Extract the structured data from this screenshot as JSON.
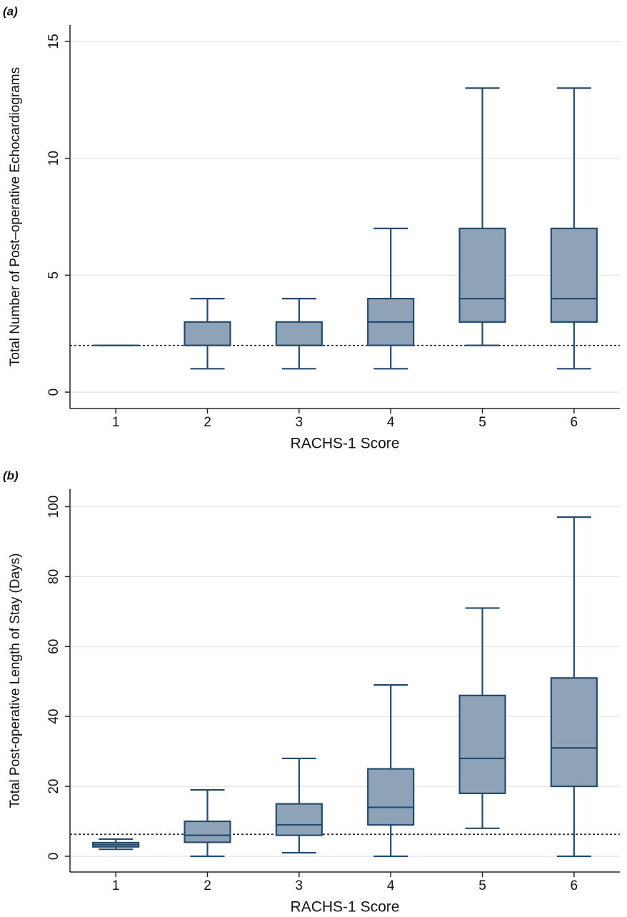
{
  "chart_data": [
    {
      "type": "box",
      "panel_label": "(a)",
      "xlabel": "RACHS-1 Score",
      "ylabel": "Total Number of Post–operative Echocardiograms",
      "categories": [
        "1",
        "2",
        "3",
        "4",
        "5",
        "6"
      ],
      "min": [
        2,
        1,
        1,
        1,
        2,
        1
      ],
      "q1": [
        2,
        2,
        2,
        2,
        3,
        3
      ],
      "median": [
        2,
        2,
        2,
        3,
        4,
        4
      ],
      "q3": [
        2,
        3,
        3,
        4,
        7,
        7
      ],
      "max": [
        2,
        4,
        4,
        7,
        13,
        13
      ],
      "reference_line": 2,
      "color": "#8ea3b8",
      "edge_color": "#244b6e",
      "ylim": [
        -0.7,
        15.7
      ],
      "yticks": [
        0,
        5,
        10,
        15
      ],
      "grid": true
    },
    {
      "type": "box",
      "panel_label": "(b)",
      "xlabel": "RACHS-1 Score",
      "ylabel": "Total Post-operative Length of Stay (Days)",
      "categories": [
        "1",
        "2",
        "3",
        "4",
        "5",
        "6"
      ],
      "min": [
        2,
        0,
        1,
        0,
        8,
        0
      ],
      "q1": [
        2.7,
        4,
        6,
        9,
        18,
        20
      ],
      "median": [
        3.3,
        6,
        9,
        14,
        28,
        31
      ],
      "q3": [
        3.9,
        10,
        15,
        25,
        46,
        51
      ],
      "max": [
        4.9,
        19,
        28,
        49,
        71,
        97
      ],
      "reference_line": 6.3,
      "color": "#8ea3b8",
      "edge_color": "#244b6e",
      "ylim": [
        -4.5,
        105
      ],
      "yticks": [
        0,
        20,
        40,
        60,
        80,
        100
      ],
      "grid": true
    }
  ]
}
